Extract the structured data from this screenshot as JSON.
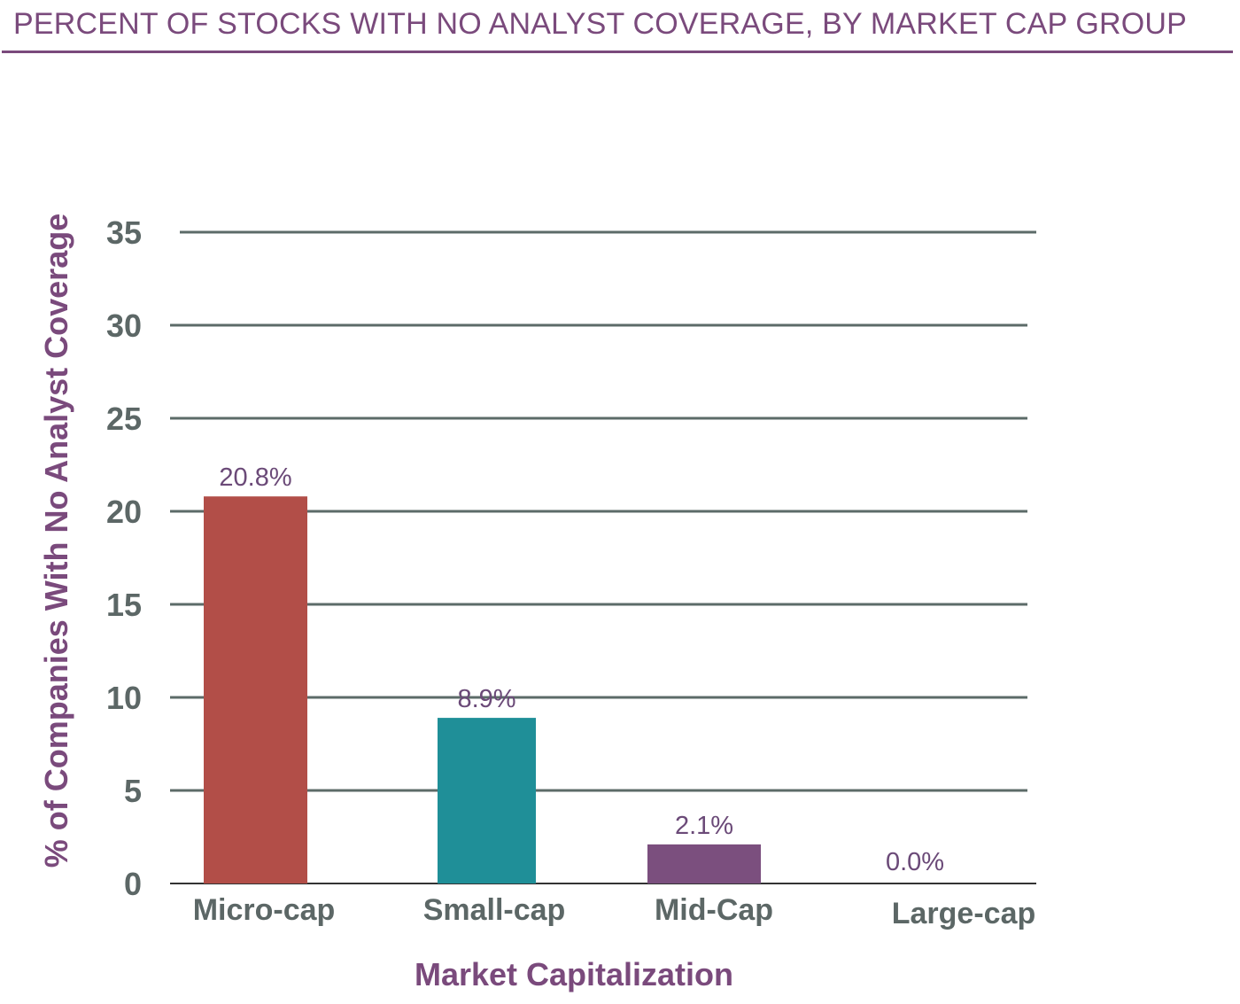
{
  "chart_data": {
    "type": "bar",
    "title": "PERCENT OF STOCKS WITH NO ANALYST COVERAGE, BY MARKET CAP GROUP",
    "xlabel": "Market Capitalization",
    "ylabel": "% of Companies With No Analyst Coverage",
    "categories": [
      "Micro-cap",
      "Small-cap",
      "Mid-Cap",
      "Large-cap"
    ],
    "values": [
      20.8,
      8.9,
      2.1,
      0.0
    ],
    "data_labels": [
      "20.8%",
      "8.9%",
      "2.1%",
      "0.0%"
    ],
    "bar_colors": [
      "#b24e48",
      "#1f8f98",
      "#7b4f7e",
      "#7b4f7e"
    ],
    "ylim": [
      0,
      35
    ],
    "yticks": [
      "0",
      "5",
      "10",
      "15",
      "20",
      "25",
      "30",
      "35"
    ],
    "grid": true,
    "legend": "none"
  },
  "colors": {
    "title": "#7a4a7c",
    "grid": "#5c6b68",
    "label": "#6b4a78"
  }
}
